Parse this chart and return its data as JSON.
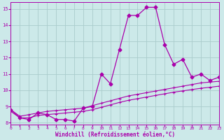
{
  "xlabel": "Windchill (Refroidissement éolien,°C)",
  "bg_color": "#cce9e9",
  "grid_color": "#aacccc",
  "line_color": "#aa00aa",
  "x_main": [
    0,
    1,
    2,
    3,
    4,
    5,
    6,
    7,
    8,
    9,
    10,
    11,
    12,
    13,
    14,
    15,
    16,
    17,
    18,
    19,
    20,
    21,
    22,
    23
  ],
  "y_main": [
    8.8,
    8.3,
    8.2,
    8.6,
    8.5,
    8.2,
    8.2,
    8.1,
    8.9,
    9.0,
    11.0,
    10.4,
    12.5,
    14.6,
    14.6,
    15.1,
    15.1,
    12.8,
    11.6,
    11.9,
    10.8,
    11.0,
    10.6,
    10.8
  ],
  "y_line2": [
    8.8,
    8.4,
    8.5,
    8.6,
    8.7,
    8.75,
    8.8,
    8.85,
    8.9,
    9.05,
    9.2,
    9.35,
    9.5,
    9.65,
    9.75,
    9.85,
    9.95,
    10.05,
    10.15,
    10.25,
    10.35,
    10.45,
    10.5,
    10.55
  ],
  "y_line3": [
    8.7,
    8.3,
    8.3,
    8.45,
    8.5,
    8.55,
    8.6,
    8.65,
    8.7,
    8.8,
    8.95,
    9.1,
    9.25,
    9.38,
    9.48,
    9.58,
    9.68,
    9.78,
    9.88,
    9.96,
    10.04,
    10.12,
    10.18,
    10.25
  ],
  "xlim": [
    0,
    23
  ],
  "ylim": [
    7.9,
    15.4
  ],
  "yticks": [
    8,
    9,
    10,
    11,
    12,
    13,
    14,
    15
  ],
  "xticks": [
    0,
    1,
    2,
    3,
    4,
    5,
    6,
    7,
    8,
    9,
    10,
    11,
    12,
    13,
    14,
    15,
    16,
    17,
    18,
    19,
    20,
    21,
    22,
    23
  ]
}
